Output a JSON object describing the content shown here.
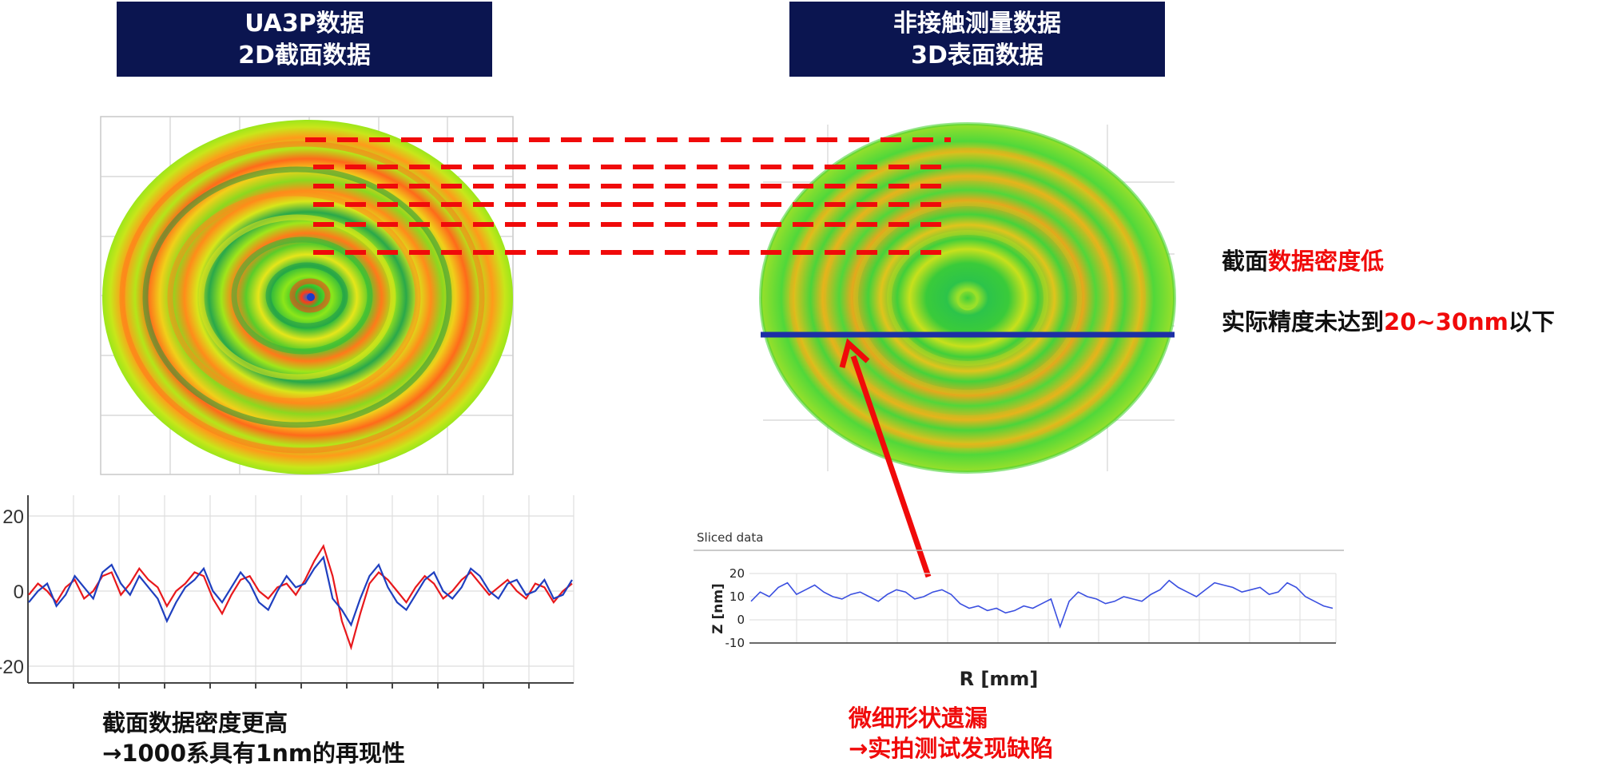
{
  "header_left": {
    "line1": "UA3P数据",
    "line2": "2D截面数据"
  },
  "header_right": {
    "line1": "非接触测量数据",
    "line2": "3D表面数据"
  },
  "note_density": {
    "prefix": "截面",
    "highlight": "数据密度低"
  },
  "note_precision": {
    "prefix": "实际精度未达到",
    "highlight": "20~30nm",
    "suffix": "以下"
  },
  "left_chart": {
    "yticks": [
      "20",
      "0",
      "-20"
    ]
  },
  "right_chart": {
    "title": "Sliced data",
    "ylabel": "Z [nm]",
    "xlabel": "R [mm]",
    "yticks": [
      "20",
      "10",
      "0",
      "-10"
    ]
  },
  "caption_left": {
    "line1": "截面数据密度更高",
    "line2": "→1000系具有1nm的再现性"
  },
  "caption_right": {
    "line1": "微细形状遗漏",
    "line2": "→实拍测试发现缺陷"
  },
  "colors": {
    "header_bg": "#0b1550",
    "accent_red": "#f00a0a",
    "profile_blue": "#1f3fbf",
    "profile_red": "#e8181c",
    "cut_line": "#1c2fa6"
  },
  "chart_data": [
    {
      "type": "line",
      "ylim": [
        -25,
        25
      ],
      "series": [
        {
          "values": [
            -1,
            2,
            0,
            -3,
            1,
            3,
            -2,
            0,
            4,
            5,
            -1,
            2,
            6,
            3,
            1,
            -4,
            0,
            2,
            5,
            4,
            -2,
            -6,
            -1,
            3,
            4,
            0,
            -2,
            1,
            2,
            -1,
            3,
            8,
            12,
            4,
            -8,
            -15,
            -6,
            2,
            5,
            3,
            0,
            -3,
            1,
            4,
            2,
            -2,
            0,
            3,
            5,
            2,
            -1,
            1,
            3,
            0,
            -2,
            2,
            1,
            -3,
            0,
            2
          ]
        },
        {
          "values": [
            -3,
            0,
            2,
            -4,
            -1,
            4,
            1,
            -2,
            5,
            7,
            2,
            -1,
            4,
            1,
            -2,
            -8,
            -3,
            1,
            3,
            6,
            0,
            -3,
            1,
            5,
            2,
            -3,
            -5,
            0,
            4,
            1,
            2,
            6,
            9,
            -2,
            -5,
            -9,
            -2,
            4,
            7,
            1,
            -3,
            -5,
            -1,
            3,
            5,
            0,
            -2,
            1,
            6,
            4,
            0,
            -2,
            2,
            3,
            -1,
            0,
            3,
            -2,
            -1,
            3
          ]
        }
      ]
    },
    {
      "type": "line",
      "title": "Sliced data",
      "xlabel": "R [mm]",
      "ylabel": "Z [nm]",
      "ylim": [
        -10,
        20
      ],
      "series": [
        {
          "values": [
            8,
            12,
            10,
            14,
            16,
            11,
            13,
            15,
            12,
            10,
            9,
            11,
            12,
            10,
            8,
            11,
            13,
            12,
            9,
            10,
            12,
            13,
            11,
            7,
            5,
            6,
            4,
            5,
            3,
            4,
            6,
            5,
            7,
            9,
            -3,
            8,
            12,
            10,
            9,
            7,
            8,
            10,
            9,
            8,
            11,
            13,
            17,
            14,
            12,
            10,
            13,
            16,
            15,
            14,
            12,
            13,
            14,
            11,
            12,
            16,
            14,
            10,
            8,
            6,
            5
          ]
        }
      ]
    }
  ]
}
